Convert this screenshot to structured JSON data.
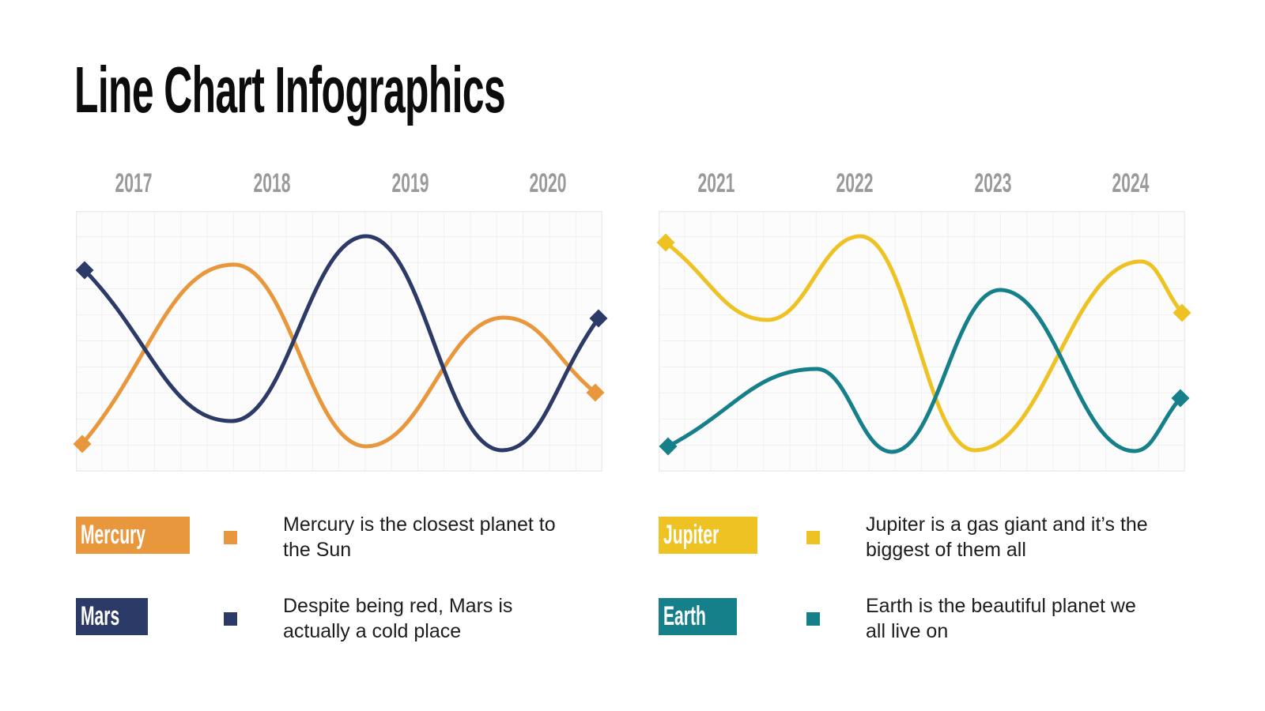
{
  "title": "Line Chart Infographics",
  "charts": [
    {
      "years": [
        "2017",
        "2018",
        "2019",
        "2020"
      ],
      "series": [
        {
          "name": "Mercury",
          "color": "#E8973C",
          "px": [
            {
              "x": 8,
              "y": 295
            },
            {
              "x": 200,
              "y": 68
            },
            {
              "x": 367,
              "y": 298
            },
            {
              "x": 541,
              "y": 135
            },
            {
              "x": 657,
              "y": 230
            }
          ]
        },
        {
          "name": "Mars",
          "color": "#2C3A67",
          "px": [
            {
              "x": 11,
              "y": 75
            },
            {
              "x": 197,
              "y": 266
            },
            {
              "x": 367,
              "y": 32
            },
            {
              "x": 539,
              "y": 303
            },
            {
              "x": 661,
              "y": 136
            }
          ]
        }
      ]
    },
    {
      "years": [
        "2021",
        "2022",
        "2023",
        "2024"
      ],
      "series": [
        {
          "name": "Jupiter",
          "color": "#EFC223",
          "px": [
            {
              "x": 9,
              "y": 40
            },
            {
              "x": 138,
              "y": 138
            },
            {
              "x": 255,
              "y": 32
            },
            {
              "x": 400,
              "y": 303
            },
            {
              "x": 610,
              "y": 64
            },
            {
              "x": 662,
              "y": 129
            }
          ]
        },
        {
          "name": "Earth",
          "color": "#16808A",
          "px": [
            {
              "x": 12,
              "y": 298
            },
            {
              "x": 200,
              "y": 200
            },
            {
              "x": 295,
              "y": 305
            },
            {
              "x": 432,
              "y": 100
            },
            {
              "x": 602,
              "y": 304
            },
            {
              "x": 660,
              "y": 237
            }
          ]
        }
      ]
    }
  ],
  "legend": [
    {
      "label": "Mercury",
      "color": "#E8973C",
      "description": "Mercury is the closest planet to\nthe Sun"
    },
    {
      "label": "Mars",
      "color": "#2C3A67",
      "description": "Despite being red, Mars is\nactually a cold place"
    },
    {
      "label": "Jupiter",
      "color": "#EFC223",
      "description": "Jupiter is a gas giant and it’s the\nbiggest of them all"
    },
    {
      "label": "Earth",
      "color": "#16808A",
      "description": "Earth is the beautiful planet we\nall live on"
    }
  ],
  "chart_data": [
    {
      "type": "line",
      "title": "Line Chart Infographics (left panel)",
      "x_labels": [
        "2017",
        "2018",
        "2019",
        "2020"
      ],
      "x_approx_years": [
        2016.6,
        2017.7,
        2018.7,
        2019.7,
        2020.4
      ],
      "series": [
        {
          "name": "Mercury",
          "color": "#E8973C",
          "values": [
            1.1,
            7.9,
            1.0,
            5.9,
            3.0
          ]
        },
        {
          "name": "Mars",
          "color": "#2C3A67",
          "values": [
            7.7,
            1.9,
            9.0,
            0.8,
            5.9
          ]
        }
      ],
      "ylim": [
        0,
        10
      ],
      "grid": true,
      "legend_position": "below",
      "markers": "diamond endpoints only"
    },
    {
      "type": "line",
      "title": "Line Chart Infographics (right panel)",
      "x_labels": [
        "2021",
        "2022",
        "2023",
        "2024"
      ],
      "series": [
        {
          "name": "Jupiter",
          "color": "#EFC223",
          "x_approx_years": [
            2020.6,
            2021.3,
            2022.0,
            2022.85,
            2024.05,
            2024.35
          ],
          "values": [
            8.8,
            5.8,
            9.0,
            0.8,
            8.1,
            6.1
          ]
        },
        {
          "name": "Earth",
          "color": "#16808A",
          "x_approx_years": [
            2020.6,
            2021.65,
            2022.2,
            2023.0,
            2023.95,
            2024.3
          ],
          "values": [
            1.0,
            3.9,
            0.8,
            7.0,
            0.8,
            2.8
          ]
        }
      ],
      "ylim": [
        0,
        10
      ],
      "grid": true,
      "legend_position": "below",
      "markers": "diamond endpoints only"
    }
  ]
}
